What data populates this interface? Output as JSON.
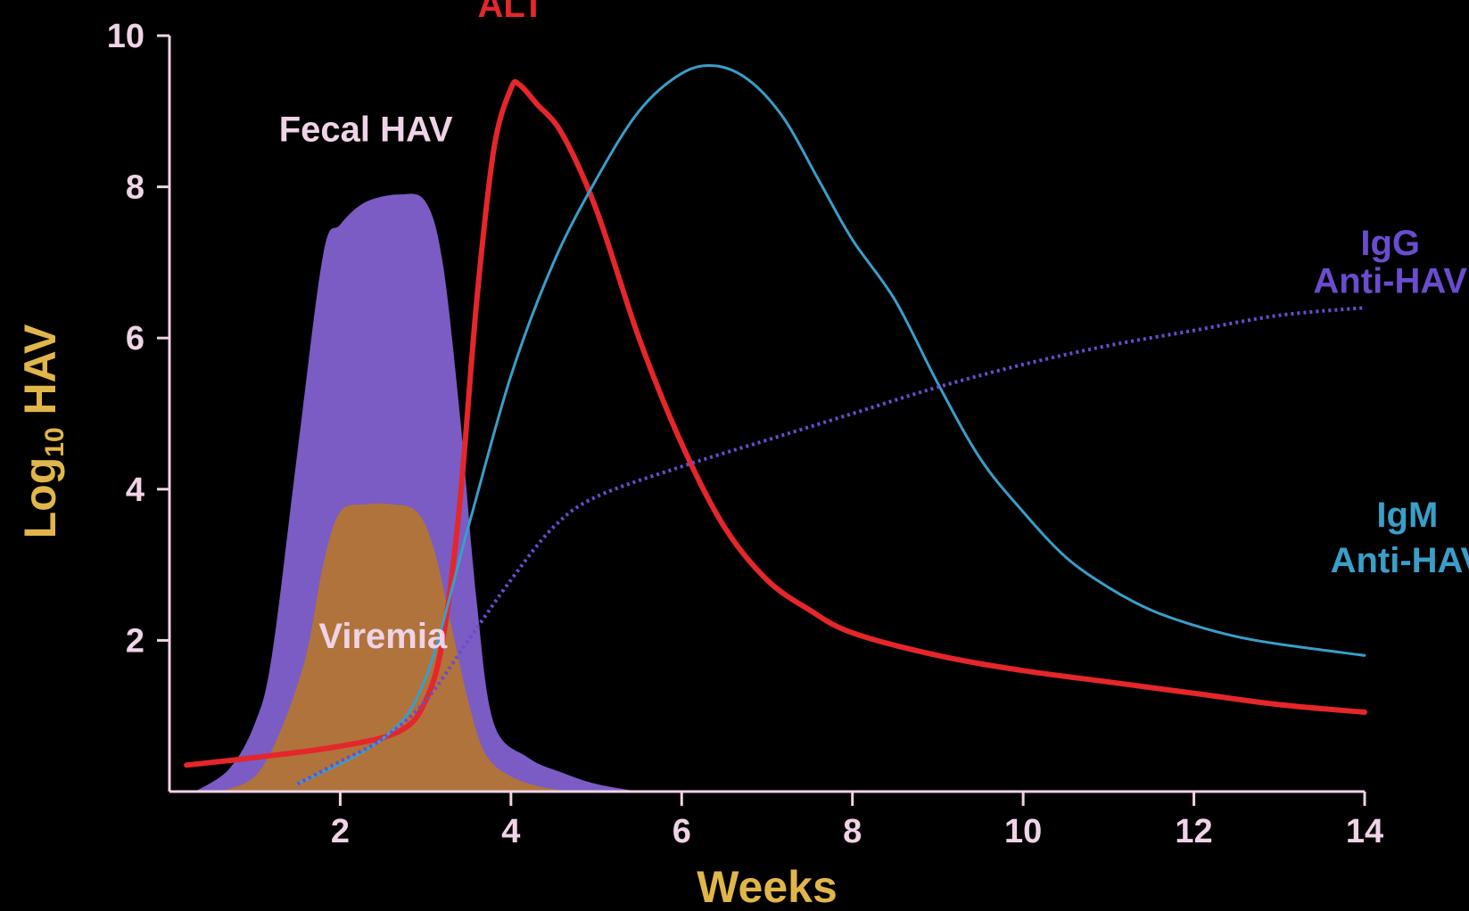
{
  "chart_data": {
    "type": "line",
    "xlabel": "Weeks",
    "ylabel": "Log",
    "ylabel_sub": "10",
    "ylabel_tail": " HAV",
    "xlim": [
      0,
      14
    ],
    "ylim": [
      0,
      10
    ],
    "x_ticks": [
      2,
      4,
      6,
      8,
      10,
      12,
      14
    ],
    "y_ticks": [
      2,
      4,
      6,
      8,
      10
    ],
    "grid": false,
    "colors": {
      "axis": "#efd3e6",
      "axis_title": "#e0b64a",
      "fecal": "#7a5cc4",
      "viremia": "#b0733c",
      "alt": "#e5262a",
      "igm": "#3a9ec8",
      "igg": "#6a4ccf"
    },
    "series": [
      {
        "name": "Fecal HAV",
        "style": "area",
        "color": "#7a5cc4",
        "points": [
          [
            0.3,
            0
          ],
          [
            0.7,
            0.3
          ],
          [
            1.0,
            0.9
          ],
          [
            1.2,
            1.8
          ],
          [
            1.5,
            4.5
          ],
          [
            1.8,
            7.1
          ],
          [
            2.0,
            7.5
          ],
          [
            2.3,
            7.8
          ],
          [
            2.7,
            7.9
          ],
          [
            3.0,
            7.8
          ],
          [
            3.2,
            7.0
          ],
          [
            3.4,
            5.0
          ],
          [
            3.6,
            2.5
          ],
          [
            3.8,
            0.9
          ],
          [
            4.2,
            0.45
          ],
          [
            4.6,
            0.25
          ],
          [
            5.0,
            0.1
          ],
          [
            5.5,
            0
          ]
        ]
      },
      {
        "name": "Viremia",
        "style": "area",
        "color": "#b0733c",
        "points": [
          [
            0.6,
            0
          ],
          [
            1.0,
            0.2
          ],
          [
            1.3,
            0.8
          ],
          [
            1.6,
            1.8
          ],
          [
            1.8,
            3.0
          ],
          [
            2.0,
            3.7
          ],
          [
            2.3,
            3.8
          ],
          [
            2.6,
            3.8
          ],
          [
            2.9,
            3.7
          ],
          [
            3.1,
            3.2
          ],
          [
            3.3,
            2.2
          ],
          [
            3.5,
            1.2
          ],
          [
            3.7,
            0.5
          ],
          [
            4.0,
            0.2
          ],
          [
            4.4,
            0.05
          ],
          [
            4.8,
            0
          ]
        ]
      },
      {
        "name": "ALT",
        "style": "line",
        "color": "#e5262a",
        "points": [
          [
            0.2,
            0.35
          ],
          [
            1.0,
            0.45
          ],
          [
            2.0,
            0.6
          ],
          [
            2.7,
            0.8
          ],
          [
            3.0,
            1.2
          ],
          [
            3.2,
            2.0
          ],
          [
            3.4,
            3.8
          ],
          [
            3.6,
            6.5
          ],
          [
            3.8,
            8.5
          ],
          [
            4.0,
            9.3
          ],
          [
            4.1,
            9.35
          ],
          [
            4.3,
            9.1
          ],
          [
            4.6,
            8.7
          ],
          [
            5.0,
            7.7
          ],
          [
            5.5,
            6.0
          ],
          [
            6.0,
            4.6
          ],
          [
            6.5,
            3.5
          ],
          [
            7.0,
            2.8
          ],
          [
            7.5,
            2.4
          ],
          [
            8.0,
            2.1
          ],
          [
            9.0,
            1.8
          ],
          [
            10.0,
            1.6
          ],
          [
            11.0,
            1.45
          ],
          [
            12.0,
            1.3
          ],
          [
            13.0,
            1.15
          ],
          [
            14.0,
            1.05
          ]
        ]
      },
      {
        "name": "IgM Anti-HAV",
        "style": "line",
        "color": "#3a9ec8",
        "points": [
          [
            1.5,
            0.1
          ],
          [
            2.5,
            0.7
          ],
          [
            3.0,
            1.5
          ],
          [
            3.5,
            3.5
          ],
          [
            4.0,
            5.5
          ],
          [
            4.5,
            7.0
          ],
          [
            5.0,
            8.1
          ],
          [
            5.5,
            9.0
          ],
          [
            6.0,
            9.5
          ],
          [
            6.4,
            9.6
          ],
          [
            6.8,
            9.4
          ],
          [
            7.2,
            8.9
          ],
          [
            7.6,
            8.1
          ],
          [
            8.0,
            7.3
          ],
          [
            8.5,
            6.5
          ],
          [
            9.0,
            5.4
          ],
          [
            9.5,
            4.4
          ],
          [
            10.0,
            3.7
          ],
          [
            10.5,
            3.1
          ],
          [
            11.0,
            2.7
          ],
          [
            11.5,
            2.4
          ],
          [
            12.0,
            2.2
          ],
          [
            12.5,
            2.05
          ],
          [
            13.0,
            1.95
          ],
          [
            14.0,
            1.8
          ]
        ]
      },
      {
        "name": "IgG Anti-HAV",
        "style": "dotted",
        "color": "#6a4ccf",
        "points": [
          [
            1.5,
            0.1
          ],
          [
            2.0,
            0.4
          ],
          [
            2.5,
            0.7
          ],
          [
            3.0,
            1.2
          ],
          [
            3.5,
            2.0
          ],
          [
            4.0,
            2.8
          ],
          [
            4.5,
            3.5
          ],
          [
            5.0,
            3.9
          ],
          [
            6.0,
            4.3
          ],
          [
            7.0,
            4.65
          ],
          [
            8.0,
            5.0
          ],
          [
            9.0,
            5.35
          ],
          [
            10.0,
            5.65
          ],
          [
            11.0,
            5.9
          ],
          [
            12.0,
            6.1
          ],
          [
            13.0,
            6.3
          ],
          [
            14.0,
            6.4
          ]
        ]
      }
    ],
    "labels": [
      {
        "text": "Fecal HAV",
        "x": 2.3,
        "y": 8.6,
        "color": "#efd3e6"
      },
      {
        "text": "Viremia",
        "x": 2.5,
        "y": 1.9,
        "color": "#efd3e6"
      },
      {
        "text": "ALT",
        "x": 4.0,
        "y": 10.25,
        "color": "#e5262a"
      },
      {
        "text": "IgG",
        "x": 14.3,
        "y": 7.1,
        "color": "#6a4ccf"
      },
      {
        "text": "Anti-HAV",
        "x": 14.3,
        "y": 6.6,
        "color": "#6a4ccf"
      },
      {
        "text": "IgM",
        "x": 14.5,
        "y": 3.5,
        "color": "#3a9ec8"
      },
      {
        "text": "Anti-HAV",
        "x": 14.5,
        "y": 2.9,
        "color": "#3a9ec8"
      }
    ]
  }
}
